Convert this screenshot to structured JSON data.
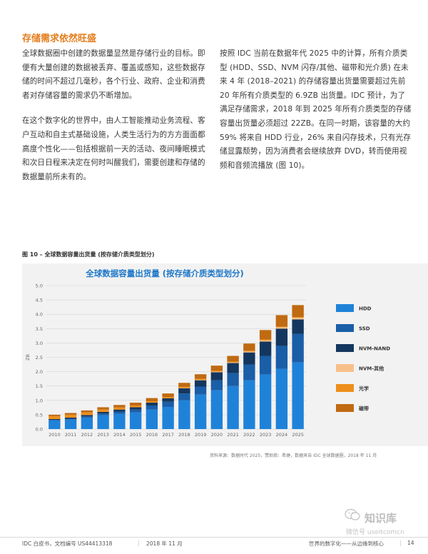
{
  "section_title": "存储需求依然旺盛",
  "left_column": {
    "p1": "全球数据圈中创建的数据量显然是存储行业的目标。即便有大量创建的数据被丢弃、覆盖或感知，这些数据存储的时间不超过几毫秒，各个行业、政府、企业和消费者对存储容量的需求仍不断增加。",
    "p2": "在这个数字化的世界中，由人工智能推动业务流程、客户互动和自主式基础设施，人类生活行为的方方面面都高度个性化——包括根据前一天的活动、夜间睡眠模式和次日日程来决定在何时叫醒我们，需要创建和存储的数据量前所未有的。"
  },
  "right_column": {
    "p1": "按照 IDC 当前在数据年代 2025 中的计算，所有介质类型 (HDD、SSD、NVM 闪存/其他、磁带和光介质) 在未来 4 年 (2018–2021) 的存储容量出货量需要超过先前 20 年所有介质类型的 6.9ZB 出货量。IDC 预计，为了满足存储需求，2018 年到 2025 年所有介质类型的存储容量出货量必须超过 22ZB。在同一时期，该容量的大约 59% 将来自 HDD 行业，26% 来自闪存技术，只有光存储显露颓势，因为消费者会继续放弃 DVD，转而使用视频和音频流播放 (图 10)。"
  },
  "figure_caption": "图 10 – 全球数据容量出货量 (按存储介质类型划分)",
  "source_note": "资料来源：数据时代 2025，赞助商：希捷，数据来自 IDC 全球数据圈，2018 年 11 月",
  "chart_data": {
    "type": "bar",
    "stacked": true,
    "title": "全球数据容量出货量 (按存储介质类型划分)",
    "ylabel": "ZB",
    "ylim": [
      0,
      5.0
    ],
    "yticks": [
      "0.0",
      "0.5",
      "1.0",
      "1.5",
      "2.0",
      "2.5",
      "3.0",
      "3.5",
      "4.0",
      "4.5",
      "5.0"
    ],
    "categories": [
      "2010",
      "2011",
      "2012",
      "2013",
      "2014",
      "2015",
      "2016",
      "2017",
      "2018",
      "2019",
      "2020",
      "2021",
      "2022",
      "2023",
      "2024",
      "2025"
    ],
    "legend_position": "right",
    "series": [
      {
        "name": "HDD",
        "color": "#1f82d9",
        "values": [
          0.3,
          0.33,
          0.4,
          0.48,
          0.53,
          0.58,
          0.68,
          0.77,
          1.0,
          1.2,
          1.35,
          1.5,
          1.7,
          1.9,
          2.1,
          2.32
        ]
      },
      {
        "name": "SSD",
        "color": "#1a5ea8",
        "values": [
          0.02,
          0.03,
          0.04,
          0.06,
          0.08,
          0.1,
          0.14,
          0.18,
          0.24,
          0.28,
          0.35,
          0.45,
          0.55,
          0.65,
          0.8,
          1.0
        ]
      },
      {
        "name": "NVM-NAND",
        "color": "#14375f",
        "values": [
          0.03,
          0.04,
          0.05,
          0.06,
          0.07,
          0.08,
          0.1,
          0.12,
          0.18,
          0.22,
          0.28,
          0.35,
          0.42,
          0.5,
          0.6,
          0.5
        ]
      },
      {
        "name": "NVM-其他",
        "color": "#f8c089",
        "values": [
          0.0,
          0.0,
          0.0,
          0.0,
          0.0,
          0.0,
          0.0,
          0.0,
          0.01,
          0.01,
          0.02,
          0.02,
          0.03,
          0.04,
          0.05,
          0.06
        ]
      },
      {
        "name": "光学",
        "color": "#ee8f1c",
        "values": [
          0.1,
          0.1,
          0.09,
          0.08,
          0.07,
          0.06,
          0.05,
          0.05,
          0.04,
          0.04,
          0.03,
          0.03,
          0.03,
          0.03,
          0.02,
          0.02
        ]
      },
      {
        "name": "磁带",
        "color": "#c06a12",
        "values": [
          0.05,
          0.06,
          0.07,
          0.08,
          0.09,
          0.1,
          0.11,
          0.12,
          0.14,
          0.16,
          0.18,
          0.2,
          0.25,
          0.33,
          0.4,
          0.42
        ]
      }
    ]
  },
  "footer": {
    "left": "IDC 白皮书，文档编号 US44413318",
    "date": "2018 年 11 月",
    "right": "世界的数字化——从边缘到核心",
    "page": "14"
  },
  "watermark": {
    "logo_text": "知识库",
    "sub_text": "微信号 useitcomcn",
    "icon": "wechat-icon"
  }
}
